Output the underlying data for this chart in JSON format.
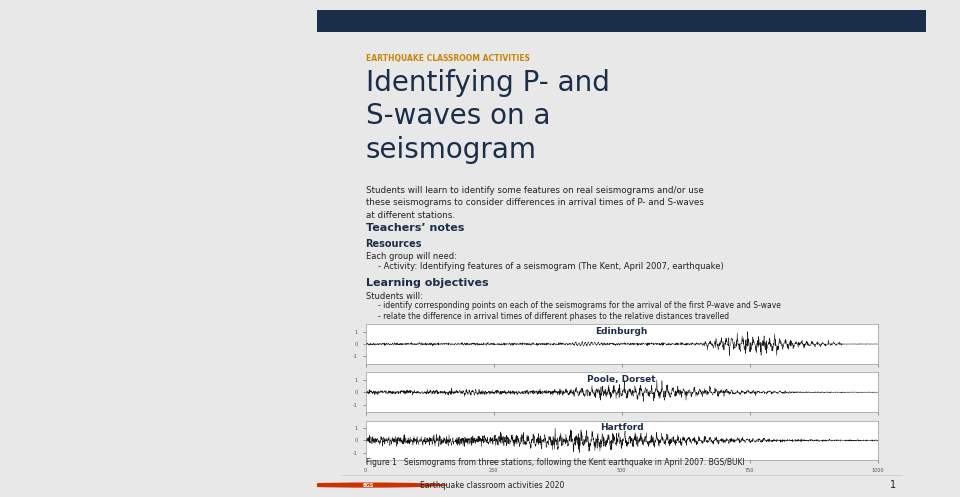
{
  "bg_color": "#e8e8e8",
  "page_bg": "#ffffff",
  "header_bar_color": "#1a2e4a",
  "subtitle_color": "#c8860a",
  "subtitle_text": "EARTHQUAKE CLASSROOM ACTIVITIES",
  "title_text": "Identifying P- and\nS-waves on a\nseismogram",
  "title_color": "#1a2e4a",
  "body_color": "#222222",
  "description": "Students will learn to identify some features on real seismograms and/or use\nthese seismograms to consider differences in arrival times of P- and S-waves\nat different stations.",
  "section1_title": "Teachers’ notes",
  "section1_bold": "Resources",
  "section1_body": "Each group will need:",
  "section1_bullet": "- Activity: Identifying features of a seismogram (The Kent, April 2007, earthquake)",
  "section2_title": "Learning objectives",
  "section2_intro": "Students will:",
  "section2_bullets": [
    "- identify corresponding points on each of the seismograms for the arrival of the first P-wave and S-wave",
    "- relate the difference in arrival times of different phases to the relative distances travelled"
  ],
  "seismo_labels": [
    "Edinburgh",
    "Poole, Dorset",
    "Hartford"
  ],
  "figure_caption": "Figure 1   Seismograms from three stations, following the Kent earthquake in April 2007. BGS/BUKI",
  "footer_text": "Earthquake classroom activities 2020",
  "footer_page": "1"
}
